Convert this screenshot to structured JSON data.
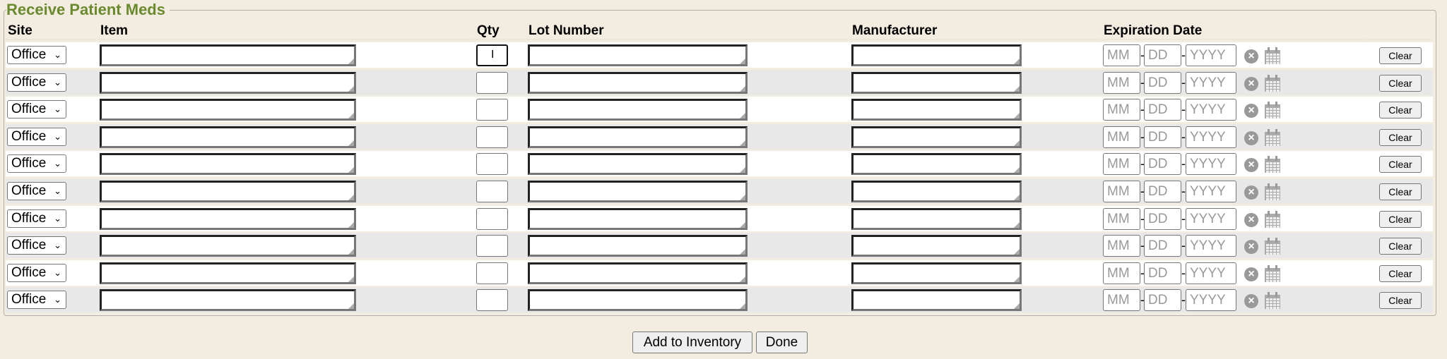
{
  "title": "Receive Patient Meds",
  "columns": {
    "site": "Site",
    "item": "Item",
    "qty": "Qty",
    "lot": "Lot Number",
    "manufacturer": "Manufacturer",
    "expiration": "Expiration Date"
  },
  "rows": [
    {
      "site": "Office",
      "item": "",
      "qty": "",
      "lot": "",
      "manufacturer": "",
      "mm": "",
      "dd": "",
      "yyyy": ""
    },
    {
      "site": "Office",
      "item": "",
      "qty": "",
      "lot": "",
      "manufacturer": "",
      "mm": "",
      "dd": "",
      "yyyy": ""
    },
    {
      "site": "Office",
      "item": "",
      "qty": "",
      "lot": "",
      "manufacturer": "",
      "mm": "",
      "dd": "",
      "yyyy": ""
    },
    {
      "site": "Office",
      "item": "",
      "qty": "",
      "lot": "",
      "manufacturer": "",
      "mm": "",
      "dd": "",
      "yyyy": ""
    },
    {
      "site": "Office",
      "item": "",
      "qty": "",
      "lot": "",
      "manufacturer": "",
      "mm": "",
      "dd": "",
      "yyyy": ""
    },
    {
      "site": "Office",
      "item": "",
      "qty": "",
      "lot": "",
      "manufacturer": "",
      "mm": "",
      "dd": "",
      "yyyy": ""
    },
    {
      "site": "Office",
      "item": "",
      "qty": "",
      "lot": "",
      "manufacturer": "",
      "mm": "",
      "dd": "",
      "yyyy": ""
    },
    {
      "site": "Office",
      "item": "",
      "qty": "",
      "lot": "",
      "manufacturer": "",
      "mm": "",
      "dd": "",
      "yyyy": ""
    },
    {
      "site": "Office",
      "item": "",
      "qty": "",
      "lot": "",
      "manufacturer": "",
      "mm": "",
      "dd": "",
      "yyyy": ""
    },
    {
      "site": "Office",
      "item": "",
      "qty": "",
      "lot": "",
      "manufacturer": "",
      "mm": "",
      "dd": "",
      "yyyy": ""
    }
  ],
  "placeholders": {
    "mm": "MM",
    "dd": "DD",
    "yyyy": "YYYY"
  },
  "clear_label": "Clear",
  "icons": {
    "clear_date": "circle-x-icon",
    "calendar": "calendar-icon",
    "select": "chevron-down-icon"
  },
  "colors": {
    "title": "#6b8a2f",
    "background": "#f3ede1",
    "row_alt": "#e8e8e8"
  },
  "buttons": {
    "add": "Add to Inventory",
    "done": "Done"
  }
}
